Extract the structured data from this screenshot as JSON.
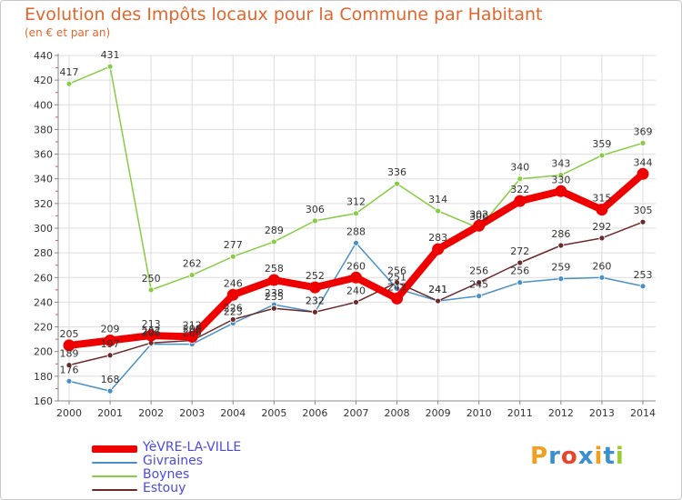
{
  "header": {
    "title": "Evolution des Impôts locaux pour la Commune par Habitant",
    "subtitle": "(en € et par an)"
  },
  "colors": {
    "title": "#e0662c",
    "axis": "#888888",
    "grid": "#dddddd"
  },
  "logo": {
    "text": "Proxiti",
    "colors": [
      "#f0a020",
      "#3a8fd0",
      "#e8452a",
      "#3a8fd0",
      "#f0a020",
      "#3a8fd0",
      "#9acd32"
    ]
  },
  "chart_data": {
    "type": "line",
    "title": "Evolution des Impôts locaux pour la Commune par Habitant",
    "subtitle": "(en € et par an)",
    "xlabel": "",
    "ylabel": "",
    "x": [
      2000,
      2001,
      2002,
      2003,
      2004,
      2005,
      2006,
      2007,
      2008,
      2009,
      2010,
      2011,
      2012,
      2013,
      2014
    ],
    "ylim": [
      160,
      440
    ],
    "yticks": [
      160,
      180,
      200,
      220,
      240,
      260,
      280,
      300,
      320,
      340,
      360,
      380,
      400,
      420,
      440
    ],
    "grid": true,
    "legend_position": "bottom-left",
    "series": [
      {
        "name": "YèVRE-LA-VILLE",
        "color": "#ee0000",
        "values": [
          205,
          209,
          213,
          212,
          246,
          258,
          252,
          260,
          243,
          283,
          302,
          322,
          330,
          315,
          344
        ],
        "labels": [
          "205",
          "209",
          "213",
          "212",
          "246",
          "258",
          "252",
          "260",
          "243",
          "283",
          "302",
          "322",
          "330",
          "315",
          "344"
        ]
      },
      {
        "name": "Givraines",
        "color": "#4a90c8",
        "values": [
          176,
          168,
          206,
          206,
          223,
          238,
          232,
          288,
          251,
          241,
          245,
          256,
          259,
          260,
          253
        ],
        "labels": [
          "176",
          "168",
          "206",
          "206",
          "223",
          "238",
          "232",
          "288",
          "251",
          "241",
          "245",
          "256",
          "259",
          "260",
          "253"
        ]
      },
      {
        "name": "Boynes",
        "color": "#88cc44",
        "values": [
          417,
          431,
          250,
          262,
          277,
          289,
          306,
          312,
          336,
          314,
          300,
          340,
          343,
          359,
          369
        ],
        "labels": [
          "417",
          "431",
          "250",
          "262",
          "277",
          "289",
          "306",
          "312",
          "336",
          "314",
          "300",
          "340",
          "343",
          "359",
          "369"
        ]
      },
      {
        "name": "Estouy",
        "color": "#6a2a2a",
        "values": [
          189,
          197,
          207,
          209,
          226,
          235,
          232,
          240,
          256,
          241,
          256,
          272,
          286,
          292,
          305
        ],
        "labels": [
          "189",
          "197",
          "207",
          "209",
          "226",
          "235",
          "232",
          "240",
          "256",
          "241",
          "256",
          "272",
          "286",
          "292",
          "305"
        ]
      }
    ]
  }
}
